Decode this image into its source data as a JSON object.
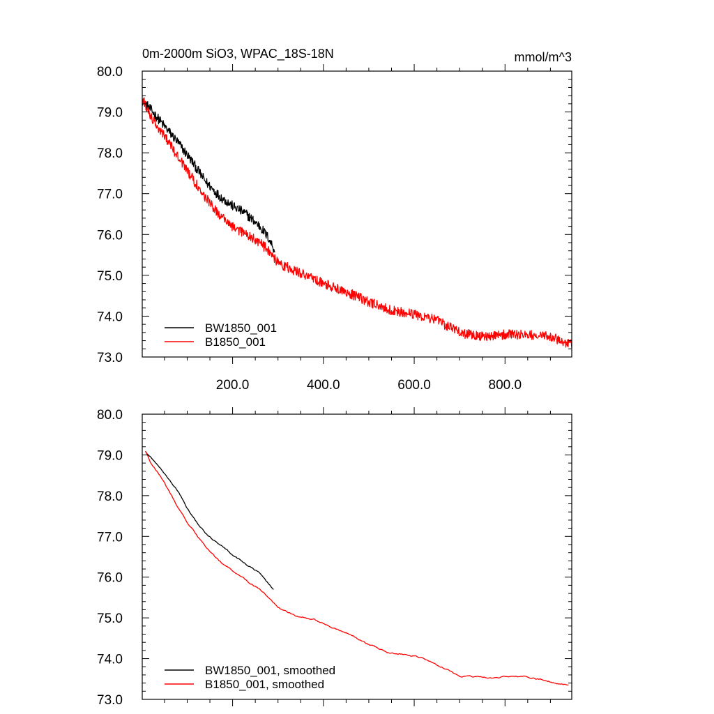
{
  "header": {
    "title": "0m-2000m SiO3, WPAC_18S-18N",
    "units": "mmol/m^3"
  },
  "colors": {
    "BW1850_001": "#000000",
    "B1850_001": "#ff0000",
    "axis": "#000000"
  },
  "chart_data": [
    {
      "type": "line",
      "title": "0m-2000m SiO3, WPAC_18S-18N",
      "units": "mmol/m^3",
      "xlim": [
        1,
        947
      ],
      "ylim": [
        73.0,
        80.0
      ],
      "x_ticks": [
        200,
        400,
        600,
        800
      ],
      "x_tick_labels": [
        "200.0",
        "400.0",
        "600.0",
        "800.0"
      ],
      "y_ticks": [
        73,
        74,
        75,
        76,
        77,
        78,
        79,
        80
      ],
      "y_tick_labels": [
        "73.0",
        "74.0",
        "75.0",
        "76.0",
        "77.0",
        "78.0",
        "79.0",
        "80.0"
      ],
      "legend_position": "bottom-left",
      "noise": 0.12,
      "series": [
        {
          "name": "BW1850_001",
          "color": "#000000",
          "points": [
            [
              1,
              79.3
            ],
            [
              20,
              79.05
            ],
            [
              50,
              78.65
            ],
            [
              80,
              78.25
            ],
            [
              110,
              77.8
            ],
            [
              140,
              77.3
            ],
            [
              170,
              76.95
            ],
            [
              200,
              76.7
            ],
            [
              230,
              76.5
            ],
            [
              260,
              76.2
            ],
            [
              280,
              75.9
            ],
            [
              293,
              75.6
            ]
          ]
        },
        {
          "name": "B1850_001",
          "color": "#ff0000",
          "points": [
            [
              1,
              79.3
            ],
            [
              20,
              78.9
            ],
            [
              50,
              78.4
            ],
            [
              80,
              77.9
            ],
            [
              110,
              77.4
            ],
            [
              140,
              76.9
            ],
            [
              170,
              76.5
            ],
            [
              200,
              76.2
            ],
            [
              230,
              76.0
            ],
            [
              260,
              75.8
            ],
            [
              280,
              75.6
            ],
            [
              300,
              75.3
            ],
            [
              350,
              75.05
            ],
            [
              400,
              74.8
            ],
            [
              450,
              74.6
            ],
            [
              500,
              74.35
            ],
            [
              550,
              74.15
            ],
            [
              600,
              74.05
            ],
            [
              650,
              73.9
            ],
            [
              700,
              73.6
            ],
            [
              750,
              73.5
            ],
            [
              800,
              73.55
            ],
            [
              850,
              73.55
            ],
            [
              900,
              73.5
            ],
            [
              947,
              73.3
            ]
          ]
        }
      ]
    },
    {
      "type": "line",
      "xlim": [
        1,
        947
      ],
      "ylim": [
        73.0,
        80.0
      ],
      "x_ticks": [
        200,
        400,
        600,
        800
      ],
      "x_tick_labels": [],
      "y_ticks": [
        73,
        74,
        75,
        76,
        77,
        78,
        79,
        80
      ],
      "y_tick_labels": [
        "73.0",
        "74.0",
        "75.0",
        "76.0",
        "77.0",
        "78.0",
        "79.0",
        "80.0"
      ],
      "legend_position": "bottom-left",
      "noise": 0.025,
      "series": [
        {
          "name": "BW1850_001, smoothed",
          "color": "#000000",
          "points": [
            [
              8,
              79.1
            ],
            [
              20,
              78.95
            ],
            [
              40,
              78.7
            ],
            [
              60,
              78.4
            ],
            [
              80,
              78.1
            ],
            [
              100,
              77.7
            ],
            [
              120,
              77.35
            ],
            [
              140,
              77.1
            ],
            [
              160,
              76.9
            ],
            [
              180,
              76.75
            ],
            [
              200,
              76.55
            ],
            [
              220,
              76.4
            ],
            [
              240,
              76.25
            ],
            [
              260,
              76.1
            ],
            [
              275,
              75.9
            ],
            [
              290,
              75.7
            ]
          ]
        },
        {
          "name": "B1850_001, smoothed",
          "color": "#ff0000",
          "points": [
            [
              8,
              79.1
            ],
            [
              20,
              78.8
            ],
            [
              40,
              78.5
            ],
            [
              60,
              78.1
            ],
            [
              80,
              77.7
            ],
            [
              100,
              77.35
            ],
            [
              120,
              77.05
            ],
            [
              140,
              76.75
            ],
            [
              160,
              76.5
            ],
            [
              180,
              76.3
            ],
            [
              200,
              76.15
            ],
            [
              220,
              76.0
            ],
            [
              240,
              75.85
            ],
            [
              260,
              75.7
            ],
            [
              280,
              75.5
            ],
            [
              300,
              75.25
            ],
            [
              340,
              75.05
            ],
            [
              380,
              74.95
            ],
            [
              420,
              74.75
            ],
            [
              460,
              74.6
            ],
            [
              500,
              74.35
            ],
            [
              540,
              74.15
            ],
            [
              580,
              74.1
            ],
            [
              620,
              74.0
            ],
            [
              660,
              73.8
            ],
            [
              700,
              73.55
            ],
            [
              750,
              73.55
            ],
            [
              800,
              73.55
            ],
            [
              850,
              73.55
            ],
            [
              900,
              73.45
            ],
            [
              940,
              73.35
            ]
          ]
        }
      ]
    }
  ]
}
